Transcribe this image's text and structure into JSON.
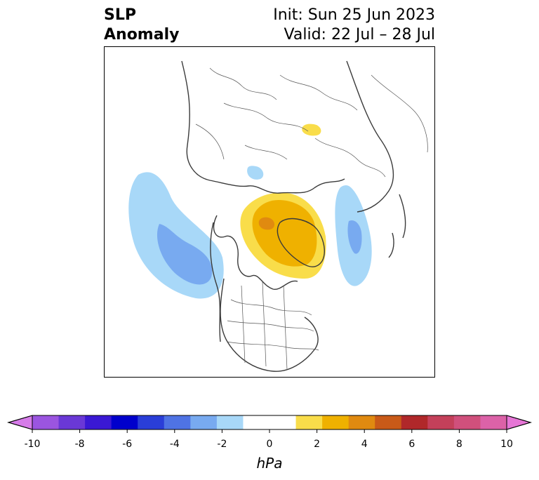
{
  "header": {
    "title_line1": "SLP",
    "title_line2": "Anomaly",
    "init_text": "Init: Sun 25 Jun 2023",
    "valid_text": "Valid: 22 Jul – 28 Jul"
  },
  "map": {
    "region": "North Pole stereographic, Northern Hemisphere",
    "anomalies": [
      {
        "name": "north-pacific-low",
        "sign": "negative",
        "max_abs_hPa": 4
      },
      {
        "name": "greenland-high",
        "sign": "positive",
        "max_abs_hPa": 4
      },
      {
        "name": "north-atlantic-low",
        "sign": "negative",
        "max_abs_hPa": 3
      },
      {
        "name": "siberia-high",
        "sign": "positive",
        "max_abs_hPa": 1
      }
    ]
  },
  "colorbar": {
    "unit": "hPa",
    "range": [
      -10,
      10
    ],
    "tick_labels": [
      "-10",
      "-8",
      "-6",
      "-4",
      "-2",
      "0",
      "2",
      "4",
      "6",
      "8",
      "10"
    ],
    "colors": [
      "#d67ce9",
      "#9b55e0",
      "#6a38d6",
      "#3a18d4",
      "#0000cc",
      "#2a3ed8",
      "#4f73e4",
      "#78aaf0",
      "#a8d8f8",
      "#ffffff",
      "#ffffff",
      "#f9dd4a",
      "#efb100",
      "#e08a10",
      "#c95a18",
      "#b0282a",
      "#c4405a",
      "#d0507c",
      "#dc62a8",
      "#e676d6"
    ]
  }
}
